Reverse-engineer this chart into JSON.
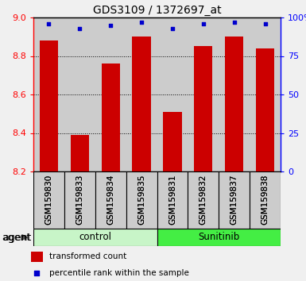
{
  "title": "GDS3109 / 1372697_at",
  "samples": [
    "GSM159830",
    "GSM159833",
    "GSM159834",
    "GSM159835",
    "GSM159831",
    "GSM159832",
    "GSM159837",
    "GSM159838"
  ],
  "red_values": [
    8.88,
    8.39,
    8.76,
    8.9,
    8.51,
    8.85,
    8.9,
    8.84
  ],
  "blue_values": [
    96,
    93,
    95,
    97,
    93,
    96,
    97,
    96
  ],
  "groups": [
    {
      "label": "control",
      "start": 0,
      "end": 4,
      "color": "#c8f5c8"
    },
    {
      "label": "Sunitinib",
      "start": 4,
      "end": 8,
      "color": "#44ee44"
    }
  ],
  "ylim_left": [
    8.2,
    9.0
  ],
  "ylim_right": [
    0,
    100
  ],
  "yticks_left": [
    8.2,
    8.4,
    8.6,
    8.8,
    9.0
  ],
  "yticks_right": [
    0,
    25,
    50,
    75,
    100
  ],
  "ytick_labels_right": [
    "0",
    "25",
    "50",
    "75",
    "100%"
  ],
  "bar_color": "#cc0000",
  "dot_color": "#0000cc",
  "bar_width": 0.6,
  "agent_label": "agent",
  "legend_red": "transformed count",
  "legend_blue": "percentile rank within the sample",
  "col_bg": "#cccccc",
  "plot_bg": "#ffffff"
}
